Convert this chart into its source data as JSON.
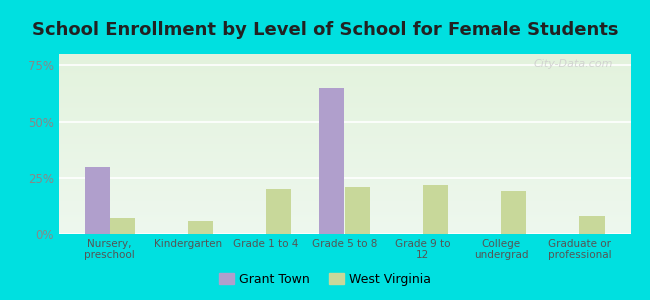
{
  "title": "School Enrollment by Level of School for Female Students",
  "categories": [
    "Nursery,\npreschool",
    "Kindergarten",
    "Grade 1 to 4",
    "Grade 5 to 8",
    "Grade 9 to\n12",
    "College\nundergrad",
    "Graduate or\nprofessional"
  ],
  "grant_town": [
    30,
    0,
    0,
    65,
    0,
    0,
    0
  ],
  "west_virginia": [
    7,
    6,
    20,
    21,
    22,
    19,
    8
  ],
  "grant_town_color": "#b09fcc",
  "west_virginia_color": "#c8d89a",
  "background_outer": "#00e0e0",
  "background_inner": "#eef7ee",
  "ylim": [
    0,
    80
  ],
  "yticks": [
    0,
    25,
    50,
    75
  ],
  "ytick_labels": [
    "0%",
    "25%",
    "50%",
    "75%"
  ],
  "bar_width": 0.32,
  "title_fontsize": 13,
  "legend_labels": [
    "Grant Town",
    "West Virginia"
  ],
  "watermark": "City-Data.com"
}
